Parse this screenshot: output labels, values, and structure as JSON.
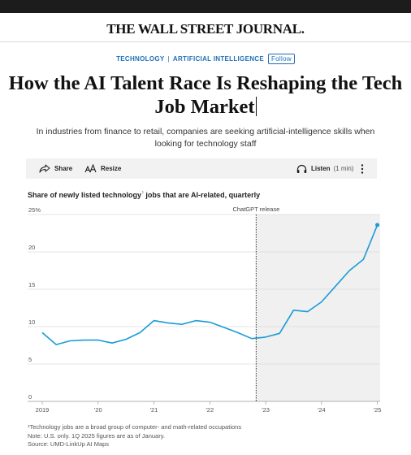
{
  "masthead": {
    "title": "THE WALL STREET JOURNAL."
  },
  "article": {
    "categories": [
      "TECHNOLOGY",
      "ARTIFICIAL INTELLIGENCE"
    ],
    "follow_label": "Follow",
    "headline": "How the AI Talent Race Is Reshaping the Tech Job Market",
    "dek": "In industries from finance to retail, companies are seeking artificial-intelligence skills when looking for technology staff"
  },
  "toolbar": {
    "share_label": "Share",
    "resize_label": "Resize",
    "listen_label": "Listen",
    "listen_duration": "(1 min)",
    "icons": {
      "share": "share-icon",
      "resize": "text-resize-icon",
      "listen": "headphones-icon",
      "more": "more-vertical-icon"
    }
  },
  "chart_data": {
    "type": "line",
    "title": "Share of newly listed technology",
    "title_suffix": " jobs that are AI-related, quarterly",
    "title_footnote_mark": "¹",
    "annotation": "ChatGPT release",
    "annotation_x": 2022.83,
    "ylim": [
      0,
      25
    ],
    "yticks": [
      0,
      5,
      10,
      15,
      20,
      25
    ],
    "ytick_labels": [
      "0",
      "5",
      "10",
      "15",
      "20",
      "25%"
    ],
    "xlim": [
      2019,
      2025.05
    ],
    "xticks": [
      2019,
      2020,
      2021,
      2022,
      2023,
      2024,
      2025
    ],
    "xtick_labels": [
      "2019",
      "'20",
      "'21",
      "'22",
      "'23",
      "'24",
      "'25"
    ],
    "grid": true,
    "line_color": "#1a9bd7",
    "shade_color": "#f0f0f0",
    "series": [
      {
        "x": [
          2019.0,
          2019.25,
          2019.5,
          2019.75,
          2020.0,
          2020.25,
          2020.5,
          2020.75,
          2021.0,
          2021.25,
          2021.5,
          2021.75,
          2022.0,
          2022.25,
          2022.5,
          2022.75,
          2023.0,
          2023.25,
          2023.5,
          2023.75,
          2024.0,
          2024.25,
          2024.5,
          2024.75,
          2025.0
        ],
        "values": [
          9.2,
          7.6,
          8.1,
          8.2,
          8.2,
          7.8,
          8.3,
          9.2,
          10.8,
          10.5,
          10.3,
          10.8,
          10.6,
          9.9,
          9.2,
          8.4,
          8.6,
          9.1,
          12.2,
          12.0,
          13.3,
          15.4,
          17.5,
          19.0,
          23.6
        ]
      }
    ]
  },
  "footnotes": {
    "note1": "¹Technology jobs are a broad group of computer- and math-related occupations",
    "note2": "Note: U.S. only. 1Q 2025 figures are as of January.",
    "source": "Source: UMD-LinkUp AI Maps"
  }
}
